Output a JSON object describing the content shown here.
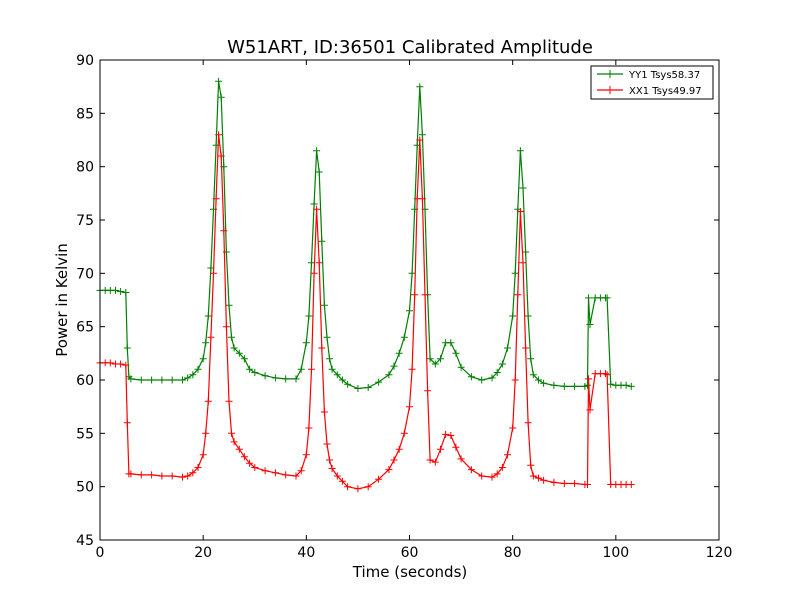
{
  "chart_data": {
    "type": "line",
    "title": "W51ART, ID:36501 Calibrated Amplitude",
    "xlabel": "Time (seconds)",
    "ylabel": "Power in Kelvin",
    "xlim": [
      0,
      120
    ],
    "ylim": [
      45,
      90
    ],
    "xticks": [
      0,
      20,
      40,
      60,
      80,
      100,
      120
    ],
    "yticks": [
      45,
      50,
      55,
      60,
      65,
      70,
      75,
      80,
      85,
      90
    ],
    "grid": false,
    "legend_position": "top-right",
    "marker": "+",
    "series": [
      {
        "name": "YY1 Tsys58.37",
        "color": "#008000",
        "x": [
          0,
          1,
          2,
          3,
          4,
          5,
          5.3,
          5.6,
          6,
          8,
          10,
          12,
          14,
          16,
          17,
          18,
          19,
          20,
          20.5,
          21,
          21.5,
          22,
          22.5,
          23,
          23.5,
          24,
          24.5,
          25,
          25.5,
          26,
          27,
          28,
          29,
          30,
          32,
          34,
          36,
          38,
          39,
          40,
          40.5,
          41,
          41.5,
          42,
          42.5,
          43,
          43.5,
          44,
          44.5,
          45,
          46,
          47,
          48,
          50,
          52,
          54,
          56,
          57,
          58,
          59,
          60,
          60.5,
          61,
          61.5,
          62,
          62.5,
          63,
          63.5,
          64,
          65,
          66,
          67,
          68,
          69,
          70,
          72,
          74,
          76,
          77,
          78,
          79,
          80,
          80.5,
          81,
          81.5,
          82,
          82.5,
          83,
          83.5,
          84,
          85,
          86,
          88,
          90,
          92,
          94,
          94.5,
          94.7,
          95,
          96,
          97,
          98,
          98.3,
          99,
          100,
          101,
          102,
          103
        ],
        "values": [
          68.4,
          68.4,
          68.4,
          68.4,
          68.3,
          68.2,
          63,
          60.3,
          60.1,
          60,
          60,
          60,
          60,
          60,
          60.2,
          60.5,
          61,
          62,
          63.5,
          66,
          70.5,
          76,
          82,
          88,
          86.5,
          80,
          72,
          67,
          64,
          63,
          62.5,
          62,
          61,
          60.7,
          60.4,
          60.2,
          60.1,
          60.1,
          61,
          63.5,
          66,
          71,
          76.5,
          81.5,
          79.5,
          73,
          67,
          64,
          62,
          61,
          60.5,
          60,
          59.6,
          59.2,
          59.3,
          59.8,
          60.5,
          61.3,
          62.5,
          64,
          66.5,
          70,
          76,
          82,
          87.5,
          83,
          76,
          68,
          62,
          61.5,
          62,
          63.5,
          63.5,
          62.5,
          61.2,
          60.3,
          60,
          60.2,
          60.7,
          61.5,
          63,
          66,
          70,
          76,
          81.5,
          78,
          72,
          66,
          62,
          60.5,
          60,
          59.7,
          59.5,
          59.4,
          59.4,
          59.4,
          59.5,
          67.7,
          65.2,
          67.7,
          67.7,
          67.7,
          67.7,
          59.6,
          59.5,
          59.5,
          59.5,
          59.4
        ]
      },
      {
        "name": "XX1 Tsys49.97",
        "color": "#ff0000",
        "x": [
          0,
          1,
          2,
          3,
          4,
          5,
          5.3,
          5.6,
          6,
          8,
          10,
          12,
          14,
          16,
          17,
          18,
          19,
          20,
          20.5,
          21,
          21.5,
          22,
          22.5,
          23,
          23.5,
          24,
          24.5,
          25,
          25.5,
          26,
          27,
          28,
          29,
          30,
          32,
          34,
          36,
          38,
          39,
          40,
          40.5,
          41,
          41.5,
          42,
          42.5,
          43,
          43.5,
          44,
          44.5,
          45,
          46,
          47,
          48,
          50,
          52,
          54,
          56,
          57,
          58,
          59,
          60,
          60.5,
          61,
          61.5,
          62,
          62.5,
          63,
          63.5,
          64,
          65,
          66,
          67,
          68,
          69,
          70,
          72,
          74,
          76,
          77,
          78,
          79,
          80,
          80.5,
          81,
          81.5,
          82,
          82.5,
          83,
          83.5,
          84,
          85,
          86,
          88,
          90,
          92,
          94,
          94.5,
          94.7,
          95,
          96,
          97,
          98,
          98.3,
          99,
          100,
          101,
          102,
          103
        ],
        "values": [
          61.6,
          61.6,
          61.6,
          61.5,
          61.5,
          61.4,
          56,
          51.2,
          51.2,
          51.1,
          51.1,
          51,
          51,
          50.9,
          51,
          51.3,
          51.8,
          53,
          55,
          58,
          64,
          70,
          77,
          83,
          81,
          74,
          65,
          58,
          55,
          54.2,
          53.5,
          52.8,
          52.2,
          51.8,
          51.5,
          51.3,
          51.1,
          51,
          51.5,
          53,
          55.5,
          61,
          70,
          76,
          71,
          63,
          57,
          54,
          52.5,
          51.7,
          51,
          50.5,
          50,
          49.8,
          50,
          50.7,
          51.6,
          52.5,
          53.5,
          55,
          57.5,
          61,
          68,
          77,
          82.5,
          77,
          68,
          59,
          52.5,
          52.3,
          53.5,
          54.9,
          54.8,
          53.7,
          52.6,
          51.6,
          51,
          50.9,
          51.2,
          51.8,
          53,
          55.5,
          60,
          68,
          75.8,
          71,
          63,
          56,
          52,
          51,
          50.8,
          50.6,
          50.4,
          50.3,
          50.3,
          50.2,
          50.2,
          60.1,
          57.2,
          60.6,
          60.6,
          60.6,
          60.5,
          50.2,
          50.2,
          50.2,
          50.2,
          50.2
        ]
      }
    ]
  }
}
